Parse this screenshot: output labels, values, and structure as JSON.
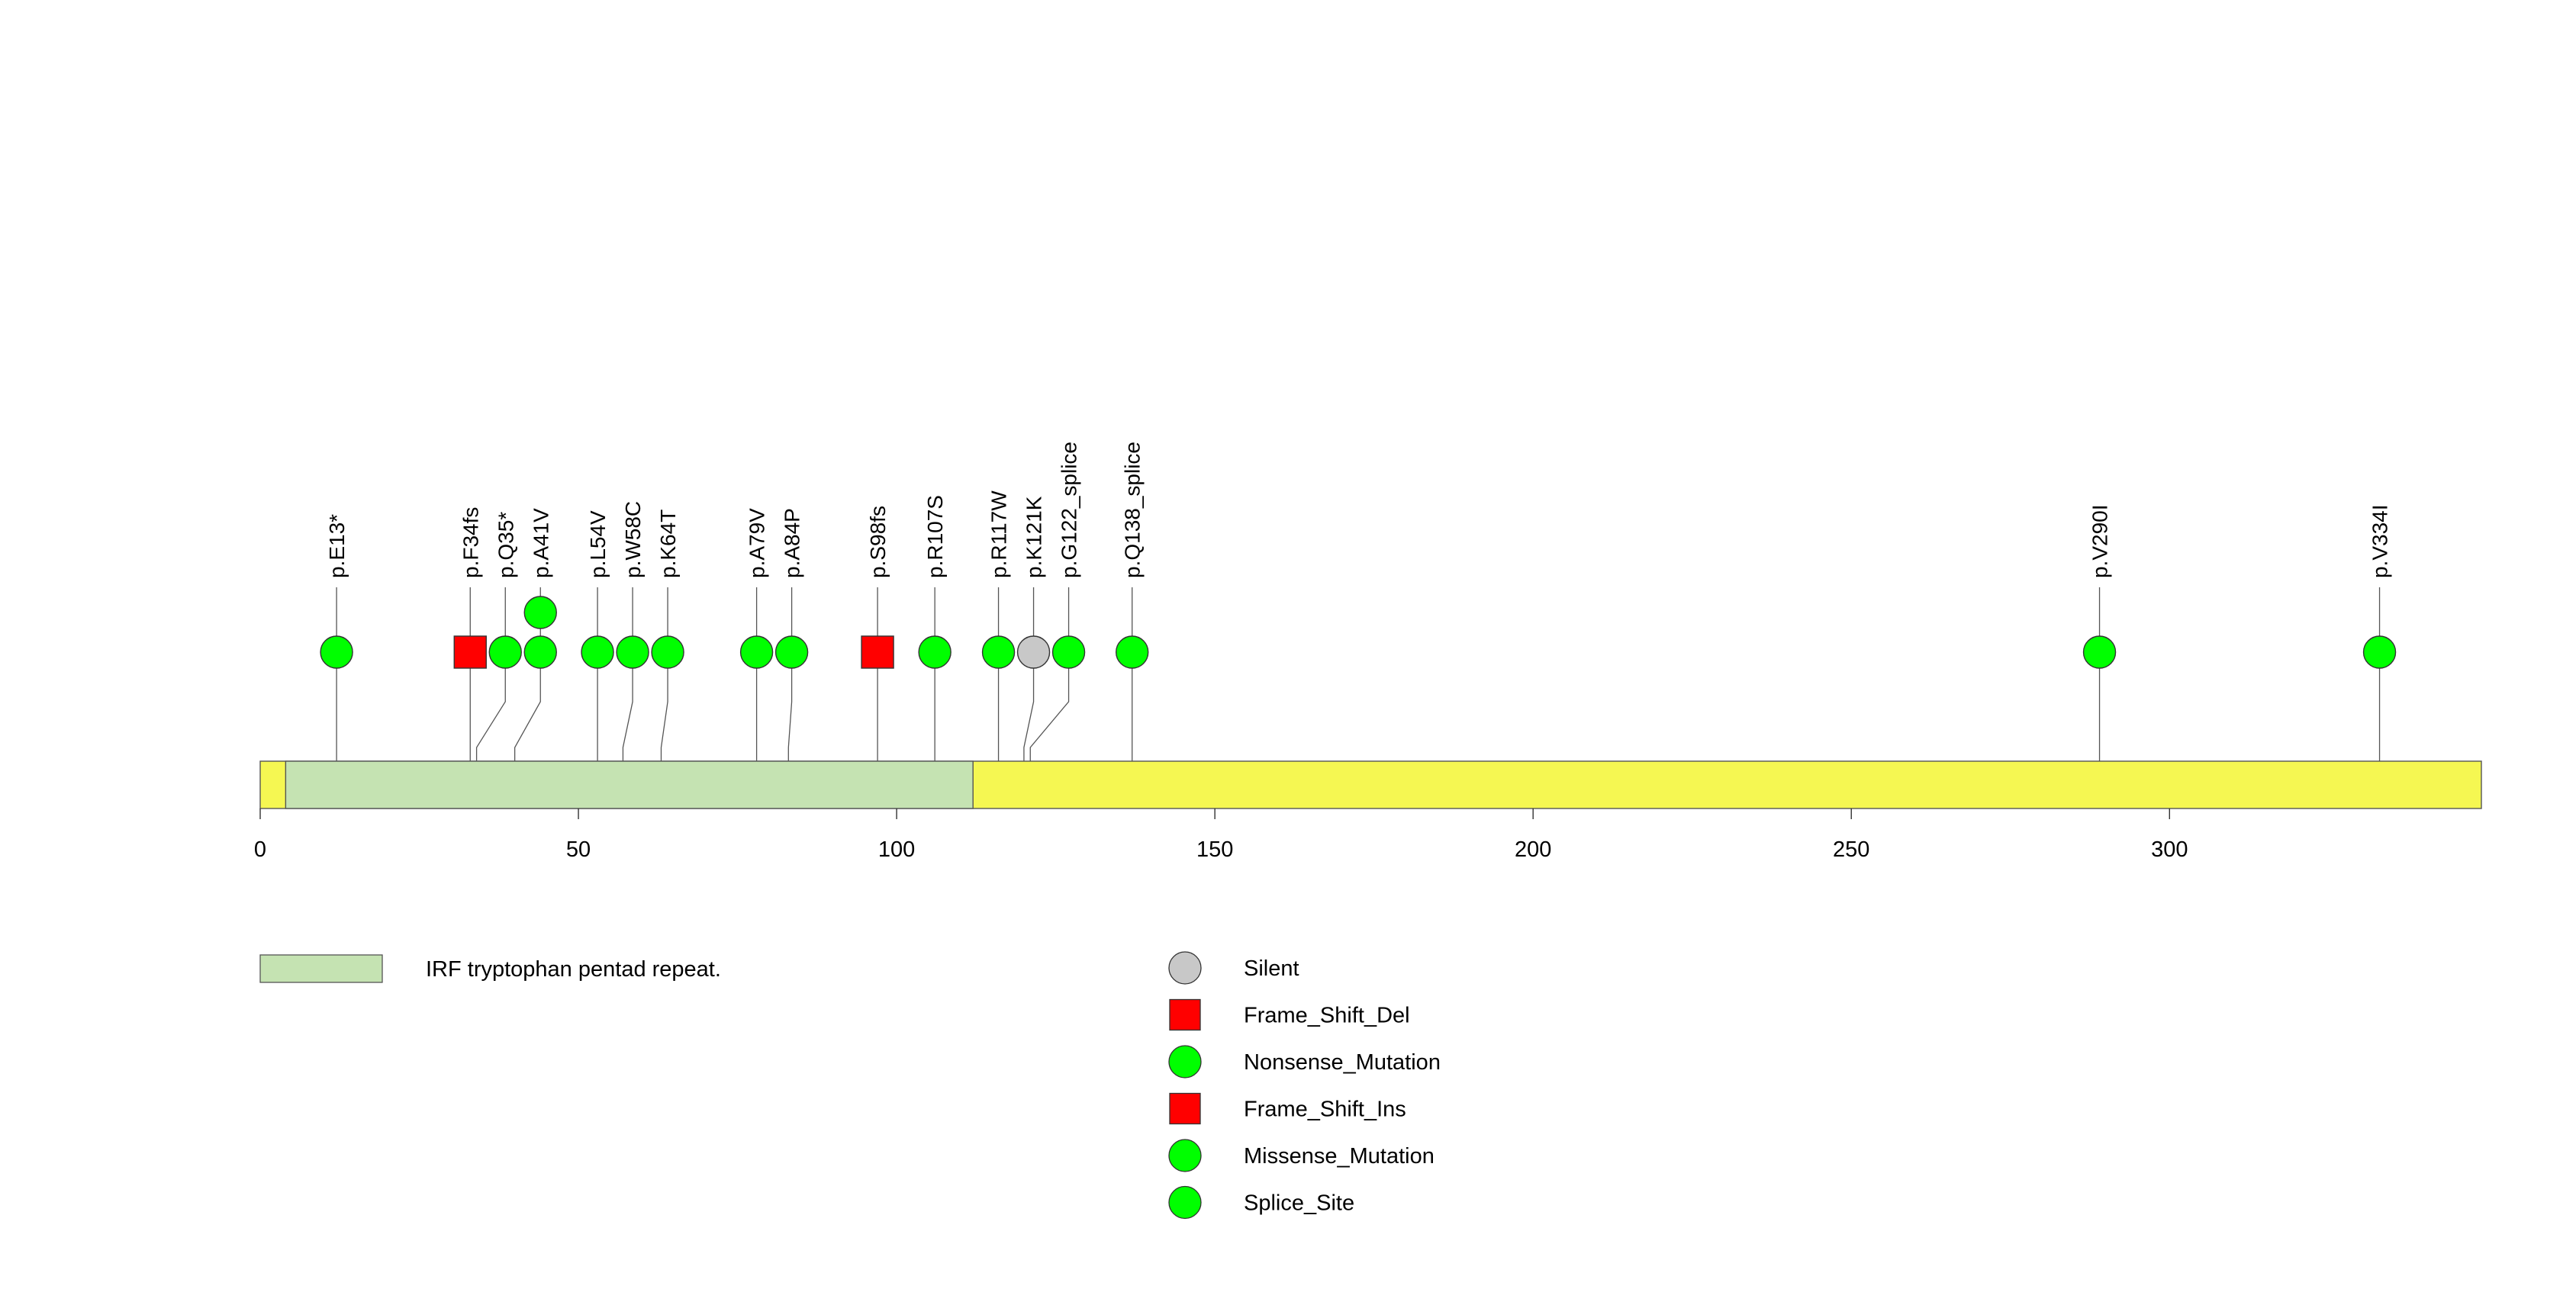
{
  "chart_data": {
    "type": "lollipop",
    "x_axis": {
      "min": 0,
      "max": 349,
      "ticks": [
        0,
        50,
        100,
        150,
        200,
        250,
        300
      ],
      "tick_labels": [
        "0",
        "50",
        "100",
        "150",
        "200",
        "250",
        "300"
      ]
    },
    "protein": {
      "length": 349,
      "backbone_color": "#f5f752"
    },
    "domains": [
      {
        "name": "IRF tryptophan pentad repeat.",
        "start": 4,
        "end": 112,
        "color": "#c5e3b2"
      }
    ],
    "mutations": [
      {
        "label": "p.E13*",
        "position": 12,
        "types": [
          "Nonsense_Mutation"
        ]
      },
      {
        "label": "p.F34fs",
        "position": 33,
        "types": [
          "Frame_Shift_Del"
        ]
      },
      {
        "label": "p.Q35*",
        "position": 34,
        "types": [
          "Nonsense_Mutation"
        ]
      },
      {
        "label": "p.A41V",
        "position": 40,
        "types": [
          "Missense_Mutation",
          "Missense_Mutation"
        ]
      },
      {
        "label": "p.L54V",
        "position": 53,
        "types": [
          "Missense_Mutation"
        ]
      },
      {
        "label": "p.W58C",
        "position": 57,
        "types": [
          "Missense_Mutation"
        ]
      },
      {
        "label": "p.K64T",
        "position": 63,
        "types": [
          "Missense_Mutation"
        ]
      },
      {
        "label": "p.A79V",
        "position": 78,
        "types": [
          "Missense_Mutation"
        ]
      },
      {
        "label": "p.A84P",
        "position": 83,
        "types": [
          "Missense_Mutation"
        ]
      },
      {
        "label": "p.S98fs",
        "position": 97,
        "types": [
          "Frame_Shift_Del"
        ]
      },
      {
        "label": "p.R107S",
        "position": 106,
        "types": [
          "Missense_Mutation"
        ]
      },
      {
        "label": "p.R117W",
        "position": 116,
        "types": [
          "Missense_Mutation"
        ]
      },
      {
        "label": "p.K121K",
        "position": 120,
        "types": [
          "Silent"
        ]
      },
      {
        "label": "p.G122_splice",
        "position": 121,
        "types": [
          "Splice_Site"
        ]
      },
      {
        "label": "p.Q138_splice",
        "position": 137,
        "types": [
          "Splice_Site"
        ]
      },
      {
        "label": "p.V290I",
        "position": 289,
        "types": [
          "Missense_Mutation"
        ]
      },
      {
        "label": "p.V334I",
        "position": 333,
        "types": [
          "Missense_Mutation"
        ]
      }
    ],
    "legend": {
      "domains": [
        {
          "label": "IRF tryptophan pentad repeat.",
          "color": "#c5e3b2"
        }
      ],
      "mutation_types": [
        {
          "label": "Silent",
          "shape": "circle",
          "color": "#c8c8c8"
        },
        {
          "label": "Frame_Shift_Del",
          "shape": "square",
          "color": "#ff0000"
        },
        {
          "label": "Nonsense_Mutation",
          "shape": "circle",
          "color": "#00ff00"
        },
        {
          "label": "Frame_Shift_Ins",
          "shape": "square",
          "color": "#ff0000"
        },
        {
          "label": "Missense_Mutation",
          "shape": "circle",
          "color": "#00ff00"
        },
        {
          "label": "Splice_Site",
          "shape": "circle",
          "color": "#00ff00"
        }
      ]
    }
  }
}
